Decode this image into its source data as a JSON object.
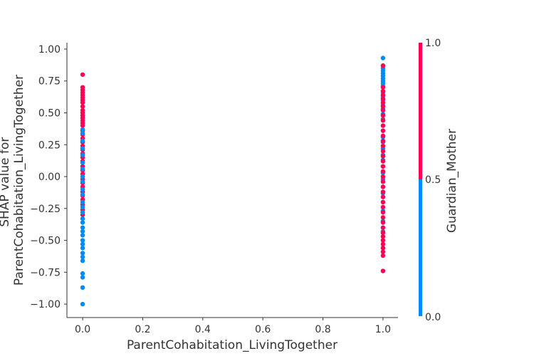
{
  "chart_data": {
    "type": "scatter",
    "title": "",
    "xlabel": "ParentCohabitation_LivingTogether",
    "ylabel_lines": [
      "SHAP value for",
      "ParentCohabitation_LivingTogether"
    ],
    "xlim": [
      -0.05,
      1.05
    ],
    "ylim": [
      -1.1,
      1.05
    ],
    "x_ticks": [
      0.0,
      0.2,
      0.4,
      0.6,
      0.8,
      1.0
    ],
    "x_tick_labels": [
      "0.0",
      "0.2",
      "0.4",
      "0.6",
      "0.8",
      "1.0"
    ],
    "y_ticks": [
      1.0,
      0.75,
      0.5,
      0.25,
      0.0,
      -0.25,
      -0.5,
      -0.75,
      -1.0
    ],
    "y_tick_labels": [
      "1.00",
      "0.75",
      "0.50",
      "0.25",
      "0.00",
      "−0.25",
      "−0.50",
      "−0.75",
      "−1.00"
    ],
    "colorbar": {
      "label": "Guardian_Mother",
      "low_color": "#008bfb",
      "high_color": "#ff0052",
      "tick_labels": [
        "1.0",
        "0.5",
        "0.0"
      ],
      "tick_values": [
        1.0,
        0.5,
        0.0
      ]
    },
    "series": [
      {
        "name": "Guardian_Mother = 1",
        "color": "#ff0052",
        "x": 0.0,
        "y": [
          0.8,
          0.7,
          0.68,
          0.66,
          0.64,
          0.62,
          0.6,
          0.58,
          0.55,
          0.52,
          0.5,
          0.48,
          0.46,
          0.44,
          0.42,
          0.4,
          0.36,
          0.33,
          0.3,
          0.27,
          0.24,
          0.21,
          0.18,
          0.15,
          0.12,
          0.08,
          0.05,
          0.02,
          -0.02,
          -0.05,
          -0.08,
          -0.12,
          -0.15,
          -0.18,
          -0.22,
          -0.26,
          -0.3
        ]
      },
      {
        "name": "Guardian_Mother = 0",
        "color": "#008bfb",
        "x": 0.0,
        "y": [
          0.37,
          0.34,
          0.28,
          0.22,
          0.17,
          0.11,
          0.06,
          0.0,
          -0.04,
          -0.1,
          -0.14,
          -0.2,
          -0.24,
          -0.28,
          -0.33,
          -0.36,
          -0.4,
          -0.43,
          -0.46,
          -0.5,
          -0.53,
          -0.56,
          -0.6,
          -0.63,
          -0.66,
          -0.76,
          -0.79,
          -0.87,
          -1.0
        ]
      },
      {
        "name": "Guardian_Mother = 0",
        "color": "#008bfb",
        "x": 1.0,
        "y": [
          0.93,
          0.87,
          0.85,
          0.83,
          0.81,
          0.79,
          0.77,
          0.75,
          0.73,
          0.71,
          0.66,
          0.63,
          0.6,
          0.56,
          0.53,
          0.49,
          0.45,
          0.4,
          0.36,
          0.31,
          0.27,
          0.22,
          0.17,
          0.13,
          0.08,
          0.03,
          -0.02,
          -0.08,
          -0.13,
          -0.2,
          -0.27,
          -0.35,
          -0.43
        ]
      },
      {
        "name": "Guardian_Mother = 1",
        "color": "#ff0052",
        "x": 1.0,
        "y": [
          0.87,
          0.7,
          0.67,
          0.64,
          0.61,
          0.58,
          0.55,
          0.52,
          0.48,
          0.44,
          0.4,
          0.36,
          0.32,
          0.28,
          0.24,
          0.2,
          0.16,
          0.12,
          0.08,
          0.04,
          0.0,
          -0.04,
          -0.08,
          -0.12,
          -0.16,
          -0.2,
          -0.24,
          -0.28,
          -0.32,
          -0.36,
          -0.4,
          -0.44,
          -0.47,
          -0.5,
          -0.53,
          -0.56,
          -0.59,
          -0.62,
          -0.74
        ]
      }
    ]
  }
}
